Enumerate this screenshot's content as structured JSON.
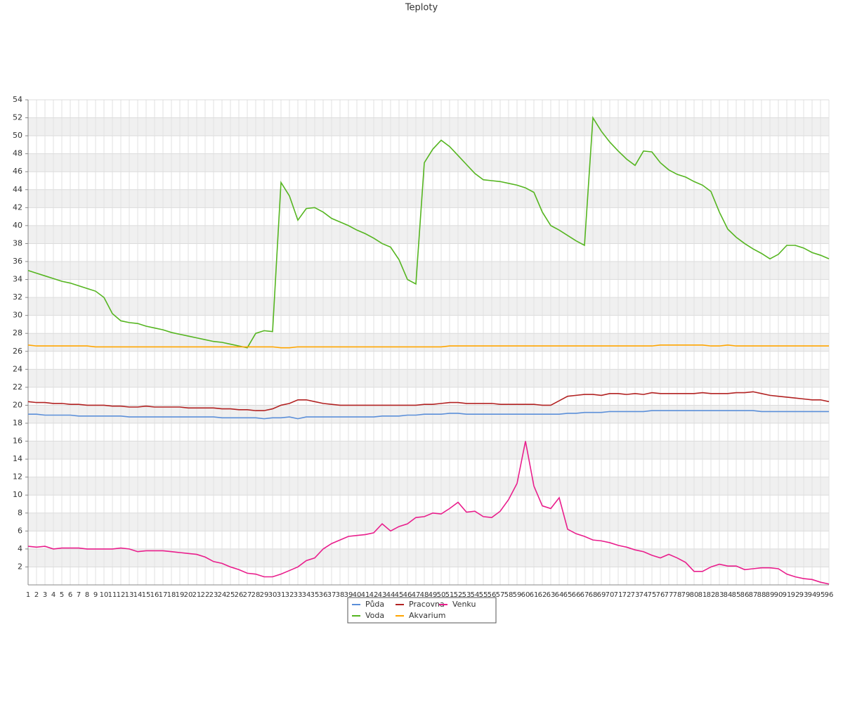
{
  "chart_data": {
    "type": "line",
    "title": "Teploty",
    "categories": [
      1,
      2,
      3,
      4,
      5,
      6,
      7,
      8,
      9,
      10,
      11,
      12,
      13,
      14,
      15,
      16,
      17,
      18,
      19,
      20,
      21,
      22,
      23,
      24,
      25,
      26,
      27,
      28,
      29,
      30,
      31,
      32,
      33,
      34,
      35,
      36,
      37,
      38,
      39,
      40,
      41,
      42,
      43,
      44,
      45,
      46,
      47,
      48,
      49,
      50,
      51,
      52,
      53,
      54,
      55,
      56,
      57,
      58,
      59,
      60,
      61,
      62,
      63,
      64,
      65,
      66,
      67,
      68,
      69,
      70,
      71,
      72,
      73,
      74,
      75,
      76,
      77,
      78,
      79,
      80,
      81,
      82,
      83,
      84,
      85,
      86,
      87,
      88,
      89,
      90,
      91,
      92,
      93,
      94,
      95,
      96
    ],
    "ylim": [
      0,
      54
    ],
    "yticks": [
      2,
      4,
      6,
      8,
      10,
      12,
      14,
      16,
      18,
      20,
      22,
      24,
      26,
      28,
      30,
      32,
      34,
      36,
      38,
      40,
      42,
      44,
      46,
      48,
      50,
      52,
      54
    ],
    "grid": true,
    "legend": "bottom",
    "series": [
      {
        "name": "Půda",
        "color": "#5b8fd9",
        "values": [
          19.0,
          19.0,
          18.9,
          18.9,
          18.9,
          18.9,
          18.8,
          18.8,
          18.8,
          18.8,
          18.8,
          18.8,
          18.7,
          18.7,
          18.7,
          18.7,
          18.7,
          18.7,
          18.7,
          18.7,
          18.7,
          18.7,
          18.7,
          18.6,
          18.6,
          18.6,
          18.6,
          18.6,
          18.5,
          18.6,
          18.6,
          18.7,
          18.5,
          18.7,
          18.7,
          18.7,
          18.7,
          18.7,
          18.7,
          18.7,
          18.7,
          18.7,
          18.8,
          18.8,
          18.8,
          18.9,
          18.9,
          19.0,
          19.0,
          19.0,
          19.1,
          19.1,
          19.0,
          19.0,
          19.0,
          19.0,
          19.0,
          19.0,
          19.0,
          19.0,
          19.0,
          19.0,
          19.0,
          19.0,
          19.1,
          19.1,
          19.2,
          19.2,
          19.2,
          19.3,
          19.3,
          19.3,
          19.3,
          19.3,
          19.4,
          19.4,
          19.4,
          19.4,
          19.4,
          19.4,
          19.4,
          19.4,
          19.4,
          19.4,
          19.4,
          19.4,
          19.4,
          19.3,
          19.3,
          19.3,
          19.3,
          19.3,
          19.3,
          19.3,
          19.3,
          19.3
        ]
      },
      {
        "name": "Voda",
        "color": "#55b520",
        "values": [
          35.0,
          34.7,
          34.4,
          34.1,
          33.8,
          33.6,
          33.3,
          33.0,
          32.7,
          32.0,
          30.2,
          29.4,
          29.2,
          29.1,
          28.8,
          28.6,
          28.4,
          28.1,
          27.9,
          27.7,
          27.5,
          27.3,
          27.1,
          27.0,
          26.8,
          26.6,
          26.4,
          28.0,
          28.3,
          28.2,
          44.8,
          43.3,
          40.6,
          41.9,
          42.0,
          41.5,
          40.8,
          40.4,
          40.0,
          39.5,
          39.1,
          38.6,
          38.0,
          37.6,
          36.2,
          34.0,
          33.5,
          47.0,
          48.5,
          49.5,
          48.8,
          47.8,
          46.8,
          45.8,
          45.1,
          45.0,
          44.9,
          44.7,
          44.5,
          44.2,
          43.7,
          41.5,
          40.0,
          39.5,
          38.9,
          38.3,
          37.8,
          52.0,
          50.5,
          49.3,
          48.3,
          47.4,
          46.7,
          48.3,
          48.2,
          47.0,
          46.2,
          45.7,
          45.4,
          44.9,
          44.5,
          43.8,
          41.5,
          39.6,
          38.7,
          38.0,
          37.4,
          36.9,
          36.3,
          36.8,
          37.8,
          37.8,
          37.5,
          37.0,
          36.7,
          36.3
        ]
      },
      {
        "name": "Pracovna",
        "color": "#b22222",
        "values": [
          20.4,
          20.3,
          20.3,
          20.2,
          20.2,
          20.1,
          20.1,
          20.0,
          20.0,
          20.0,
          19.9,
          19.9,
          19.8,
          19.8,
          19.9,
          19.8,
          19.8,
          19.8,
          19.8,
          19.7,
          19.7,
          19.7,
          19.7,
          19.6,
          19.6,
          19.5,
          19.5,
          19.4,
          19.4,
          19.6,
          20.0,
          20.2,
          20.6,
          20.6,
          20.4,
          20.2,
          20.1,
          20.0,
          20.0,
          20.0,
          20.0,
          20.0,
          20.0,
          20.0,
          20.0,
          20.0,
          20.0,
          20.1,
          20.1,
          20.2,
          20.3,
          20.3,
          20.2,
          20.2,
          20.2,
          20.2,
          20.1,
          20.1,
          20.1,
          20.1,
          20.1,
          20.0,
          20.0,
          20.5,
          21.0,
          21.1,
          21.2,
          21.2,
          21.1,
          21.3,
          21.3,
          21.2,
          21.3,
          21.2,
          21.4,
          21.3,
          21.3,
          21.3,
          21.3,
          21.3,
          21.4,
          21.3,
          21.3,
          21.3,
          21.4,
          21.4,
          21.5,
          21.3,
          21.1,
          21.0,
          20.9,
          20.8,
          20.7,
          20.6,
          20.6,
          20.4
        ]
      },
      {
        "name": "Akvarium",
        "color": "#ffa500",
        "values": [
          26.7,
          26.6,
          26.6,
          26.6,
          26.6,
          26.6,
          26.6,
          26.6,
          26.5,
          26.5,
          26.5,
          26.5,
          26.5,
          26.5,
          26.5,
          26.5,
          26.5,
          26.5,
          26.5,
          26.5,
          26.5,
          26.5,
          26.5,
          26.5,
          26.5,
          26.5,
          26.5,
          26.5,
          26.5,
          26.5,
          26.4,
          26.4,
          26.5,
          26.5,
          26.5,
          26.5,
          26.5,
          26.5,
          26.5,
          26.5,
          26.5,
          26.5,
          26.5,
          26.5,
          26.5,
          26.5,
          26.5,
          26.5,
          26.5,
          26.5,
          26.6,
          26.6,
          26.6,
          26.6,
          26.6,
          26.6,
          26.6,
          26.6,
          26.6,
          26.6,
          26.6,
          26.6,
          26.6,
          26.6,
          26.6,
          26.6,
          26.6,
          26.6,
          26.6,
          26.6,
          26.6,
          26.6,
          26.6,
          26.6,
          26.6,
          26.7,
          26.7,
          26.7,
          26.7,
          26.7,
          26.7,
          26.6,
          26.6,
          26.7,
          26.6,
          26.6,
          26.6,
          26.6,
          26.6,
          26.6,
          26.6,
          26.6,
          26.6,
          26.6,
          26.6,
          26.6
        ]
      },
      {
        "name": "Venku",
        "color": "#e91e8c",
        "values": [
          4.3,
          4.2,
          4.3,
          4.0,
          4.1,
          4.1,
          4.1,
          4.0,
          4.0,
          4.0,
          4.0,
          4.1,
          4.0,
          3.7,
          3.8,
          3.8,
          3.8,
          3.7,
          3.6,
          3.5,
          3.4,
          3.1,
          2.6,
          2.4,
          2.0,
          1.7,
          1.3,
          1.2,
          0.9,
          0.9,
          1.2,
          1.6,
          2.0,
          2.7,
          3.0,
          4.0,
          4.6,
          5.0,
          5.4,
          5.5,
          5.6,
          5.8,
          6.8,
          6.0,
          6.5,
          6.8,
          7.5,
          7.6,
          8.0,
          7.9,
          8.5,
          9.2,
          8.1,
          8.2,
          7.6,
          7.5,
          8.2,
          9.5,
          11.3,
          16.0,
          11.0,
          8.8,
          8.5,
          9.7,
          6.2,
          5.7,
          5.4,
          5.0,
          4.9,
          4.7,
          4.4,
          4.2,
          3.9,
          3.7,
          3.3,
          3.0,
          3.4,
          3.0,
          2.5,
          1.5,
          1.5,
          2.0,
          2.3,
          2.1,
          2.1,
          1.7,
          1.8,
          1.9,
          1.9,
          1.8,
          1.2,
          0.9,
          0.7,
          0.6,
          0.3,
          0.1
        ]
      }
    ]
  }
}
